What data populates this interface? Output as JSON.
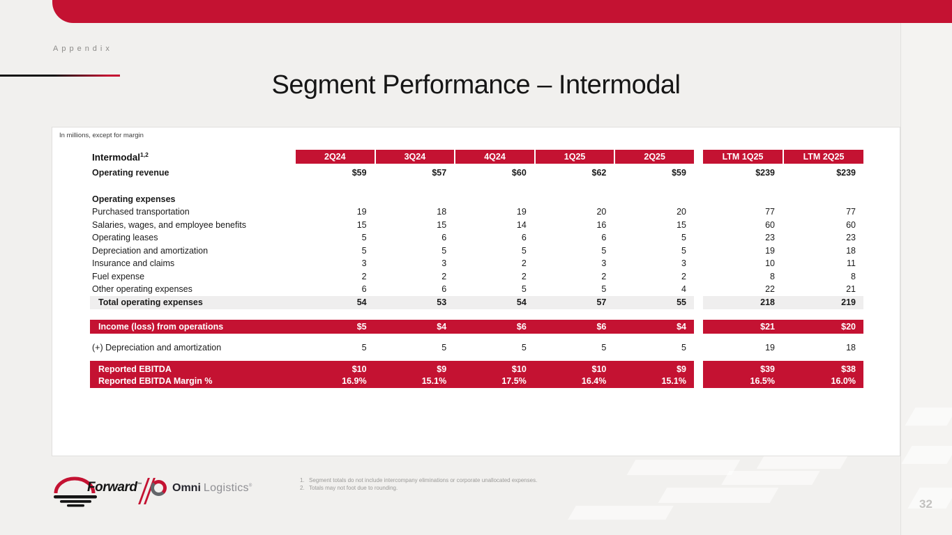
{
  "slide": {
    "eyebrow": "Appendix",
    "title": "Segment Performance – Intermodal",
    "page_number": "32"
  },
  "card": {
    "note": "In millions, except for margin",
    "table": {
      "row_header_label": "Intermodal",
      "row_header_superscript": "1,2",
      "quarter_columns": [
        "2Q24",
        "3Q24",
        "4Q24",
        "1Q25",
        "2Q25"
      ],
      "ltm_columns": [
        "LTM 1Q25",
        "LTM 2Q25"
      ],
      "rows": [
        {
          "type": "revenue",
          "label": "Operating revenue",
          "values": [
            "$59",
            "$57",
            "$60",
            "$62",
            "$59"
          ],
          "ltm": [
            "$239",
            "$239"
          ]
        },
        {
          "type": "spacer",
          "h": 16
        },
        {
          "type": "section",
          "label": "Operating expenses",
          "values": [
            "",
            "",
            "",
            "",
            ""
          ],
          "ltm": [
            "",
            ""
          ]
        },
        {
          "type": "item",
          "label": "Purchased transportation",
          "values": [
            "19",
            "18",
            "19",
            "20",
            "20"
          ],
          "ltm": [
            "77",
            "77"
          ]
        },
        {
          "type": "item",
          "label": "Salaries, wages, and employee benefits",
          "values": [
            "15",
            "15",
            "14",
            "16",
            "15"
          ],
          "ltm": [
            "60",
            "60"
          ]
        },
        {
          "type": "item",
          "label": "Operating leases",
          "values": [
            "5",
            "6",
            "6",
            "6",
            "5"
          ],
          "ltm": [
            "23",
            "23"
          ]
        },
        {
          "type": "item",
          "label": "Depreciation and amortization",
          "values": [
            "5",
            "5",
            "5",
            "5",
            "5"
          ],
          "ltm": [
            "19",
            "18"
          ]
        },
        {
          "type": "item",
          "label": "Insurance and claims",
          "values": [
            "3",
            "3",
            "2",
            "3",
            "3"
          ],
          "ltm": [
            "10",
            "11"
          ]
        },
        {
          "type": "item",
          "label": "Fuel expense",
          "values": [
            "2",
            "2",
            "2",
            "2",
            "2"
          ],
          "ltm": [
            "8",
            "8"
          ]
        },
        {
          "type": "item",
          "label": "Other operating expenses",
          "values": [
            "6",
            "6",
            "5",
            "5",
            "4"
          ],
          "ltm": [
            "22",
            "21"
          ]
        },
        {
          "type": "total",
          "label": "Total operating expenses",
          "values": [
            "54",
            "53",
            "54",
            "57",
            "55"
          ],
          "ltm": [
            "218",
            "219"
          ]
        },
        {
          "type": "spacer",
          "h": 15
        },
        {
          "type": "redbar",
          "label": "Income (loss) from operations",
          "values": [
            "$5",
            "$4",
            "$6",
            "$6",
            "$4"
          ],
          "ltm": [
            "$21",
            "$20"
          ]
        },
        {
          "type": "spacer",
          "h": 11
        },
        {
          "type": "item",
          "label": "(+) Depreciation and amortization",
          "values": [
            "5",
            "5",
            "5",
            "5",
            "5"
          ],
          "ltm": [
            "19",
            "18"
          ]
        },
        {
          "type": "spacer",
          "h": 10
        },
        {
          "type": "ebitda1",
          "label": "Reported EBITDA",
          "values": [
            "$10",
            "$9",
            "$10",
            "$10",
            "$9"
          ],
          "ltm": [
            "$39",
            "$38"
          ]
        },
        {
          "type": "ebitda2",
          "label": "Reported EBITDA Margin %",
          "values": [
            "16.9%",
            "15.1%",
            "17.5%",
            "16.4%",
            "15.1%"
          ],
          "ltm": [
            "16.5%",
            "16.0%"
          ]
        }
      ]
    }
  },
  "footer": {
    "forward_logo_text": "Forward",
    "forward_trademark": "™",
    "omni_name": "Omni",
    "omni_sub": "Logistics",
    "omni_reg": "®",
    "footnotes": [
      {
        "num": "1.",
        "text": "Segment totals do not include intercompany eliminations or corporate unallocated expenses."
      },
      {
        "num": "2.",
        "text": "Totals may not foot due to rounding."
      }
    ]
  },
  "colors": {
    "accent_red": "#c41232",
    "total_row_bg": "#efeeee",
    "background": "#f1f0ee",
    "card_bg": "#ffffff"
  }
}
